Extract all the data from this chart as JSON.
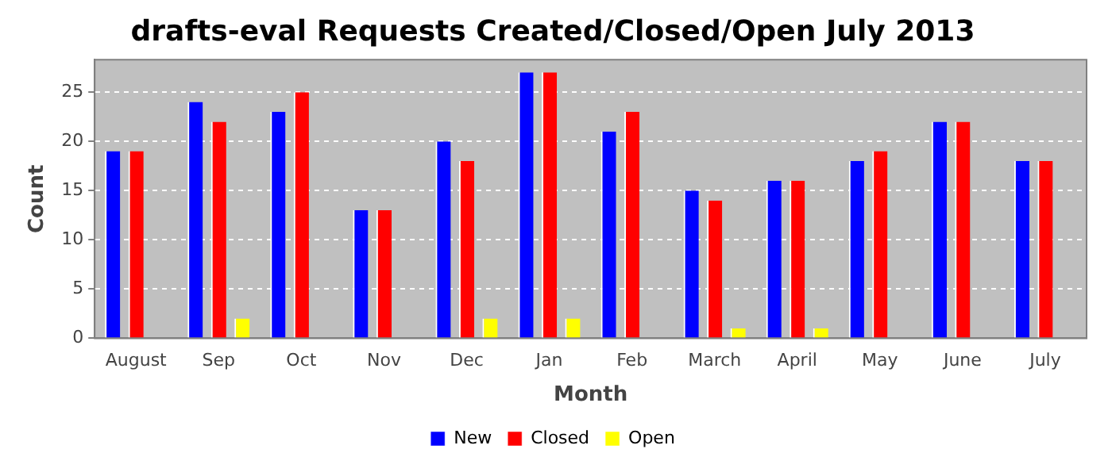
{
  "chart_data": {
    "type": "bar",
    "title": "drafts-eval Requests Created/Closed/Open July 2013",
    "xlabel": "Month",
    "ylabel": "Count",
    "categories": [
      "August",
      "Sep",
      "Oct",
      "Nov",
      "Dec",
      "Jan",
      "Feb",
      "March",
      "April",
      "May",
      "June",
      "July"
    ],
    "series": [
      {
        "name": "New",
        "color": "#0000ff",
        "values": [
          19,
          24,
          23,
          13,
          20,
          27,
          21,
          15,
          16,
          18,
          22,
          18
        ]
      },
      {
        "name": "Closed",
        "color": "#ff0000",
        "values": [
          19,
          22,
          25,
          13,
          18,
          27,
          23,
          14,
          16,
          19,
          22,
          18
        ]
      },
      {
        "name": "Open",
        "color": "#ffff00",
        "values": [
          0,
          2,
          0,
          0,
          2,
          2,
          0,
          1,
          1,
          0,
          0,
          0
        ]
      }
    ],
    "ylim": [
      0,
      28.3
    ],
    "yticks": [
      0,
      5,
      10,
      15,
      20,
      25
    ],
    "grid": "y",
    "legend": "bottom"
  }
}
